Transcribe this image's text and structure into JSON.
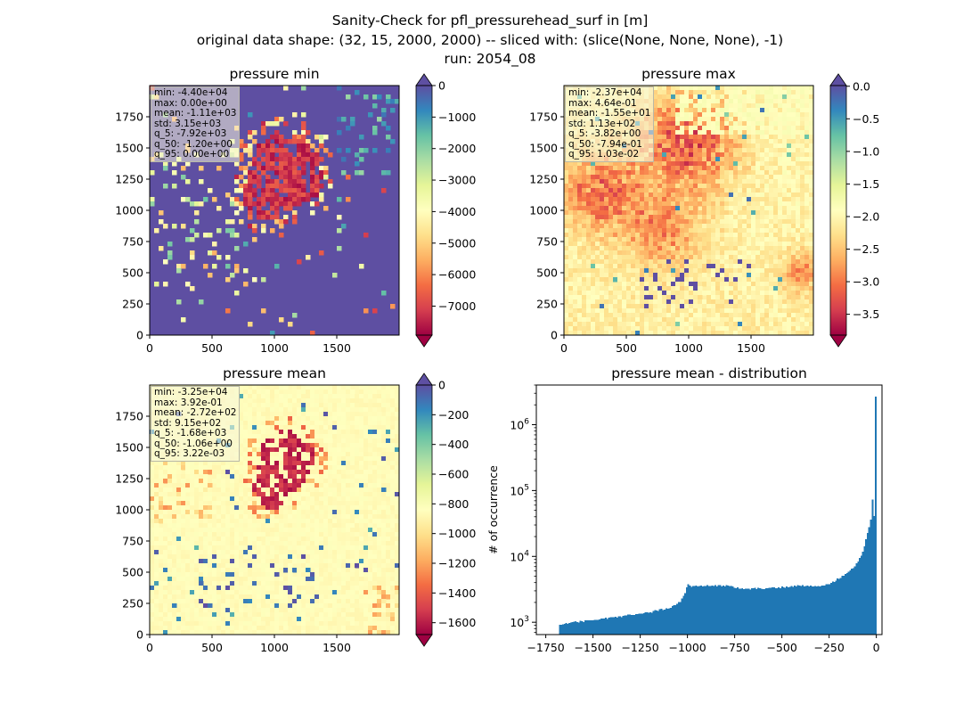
{
  "figure": {
    "title_lines": [
      "Sanity-Check for pfl_pressurehead_surf in [m]",
      "original data shape: (32, 15, 2000, 2000) -- sliced with: (slice(None, None, None), -1)",
      "run: 2054_08"
    ]
  },
  "chart_data": [
    {
      "type": "heatmap",
      "title": "pressure min",
      "xlabel": "",
      "ylabel": "",
      "xlim": [
        0,
        2000
      ],
      "ylim": [
        0,
        2000
      ],
      "xticks": [
        0,
        500,
        1000,
        1500
      ],
      "yticks": [
        0,
        250,
        500,
        750,
        1000,
        1250,
        1500,
        1750
      ],
      "colormap": "Spectral",
      "colorbar": {
        "vmin": -7920,
        "vmax": 0,
        "extend": "both",
        "ticks": [
          0,
          -1000,
          -2000,
          -3000,
          -4000,
          -5000,
          -6000,
          -7000
        ],
        "tick_labels": [
          "0",
          "−1000",
          "−2000",
          "−3000",
          "−4000",
          "−5000",
          "−6000",
          "−7000"
        ]
      },
      "stats": [
        "min: -4.40e+04",
        "max: 0.00e+00",
        "mean: -1.11e+03",
        "std: 3.15e+03",
        "q_5: -7.92e+03",
        "q_50: -1.20e+00",
        "q_95: 0.00e+00"
      ]
    },
    {
      "type": "heatmap",
      "title": "pressure max",
      "xlabel": "",
      "ylabel": "",
      "xlim": [
        0,
        2000
      ],
      "ylim": [
        0,
        2000
      ],
      "xticks": [
        0,
        500,
        1000,
        1500
      ],
      "yticks": [
        0,
        250,
        500,
        750,
        1000,
        1250,
        1500,
        1750
      ],
      "colormap": "Spectral",
      "colorbar": {
        "vmin": -3.82,
        "vmax": 0.0103,
        "extend": "both",
        "ticks": [
          0.0,
          -0.5,
          -1.0,
          -1.5,
          -2.0,
          -2.5,
          -3.0,
          -3.5
        ],
        "tick_labels": [
          "0.0",
          "−0.5",
          "−1.0",
          "−1.5",
          "−2.0",
          "−2.5",
          "−3.0",
          "−3.5"
        ]
      },
      "stats": [
        "min: -2.37e+04",
        "max: 4.64e-01",
        "mean: -1.55e+01",
        "std: 1.13e+02",
        "q_5: -3.82e+00",
        "q_50: -7.94e-01",
        "q_95: 1.03e-02"
      ]
    },
    {
      "type": "heatmap",
      "title": "pressure mean",
      "xlabel": "",
      "ylabel": "",
      "xlim": [
        0,
        2000
      ],
      "ylim": [
        0,
        2000
      ],
      "xticks": [
        0,
        500,
        1000,
        1500
      ],
      "yticks": [
        0,
        250,
        500,
        750,
        1000,
        1250,
        1500,
        1750
      ],
      "colormap": "Spectral",
      "colorbar": {
        "vmin": -1680,
        "vmax": 0.00322,
        "extend": "both",
        "ticks": [
          0,
          -200,
          -400,
          -600,
          -800,
          -1000,
          -1200,
          -1400,
          -1600
        ],
        "tick_labels": [
          "0",
          "−200",
          "−400",
          "−600",
          "−800",
          "−1000",
          "−1200",
          "−1400",
          "−1600"
        ]
      },
      "stats": [
        "min: -3.25e+04",
        "max: 3.92e-01",
        "mean: -2.72e+02",
        "std: 9.15e+02",
        "q_5: -1.68e+03",
        "q_50: -1.06e+00",
        "q_95: 3.22e-03"
      ]
    },
    {
      "type": "bar",
      "title": "pressure mean - distribution",
      "xlabel": "",
      "ylabel": "# of occurrence",
      "xlim": [
        -1800,
        30
      ],
      "yscale": "log",
      "ylim": [
        650,
        4000000
      ],
      "xticks": [
        -1750,
        -1500,
        -1250,
        -1000,
        -750,
        -500,
        -250,
        0
      ],
      "xtick_labels": [
        "−1750",
        "−1500",
        "−1250",
        "−1000",
        "−750",
        "−500",
        "−250",
        "0"
      ],
      "yticks": [
        1000,
        10000,
        100000,
        1000000
      ],
      "ytick_labels": [
        "10^3",
        "10^4",
        "10^5",
        "10^6"
      ],
      "bar_color": "#1f77b4",
      "bins": {
        "start": -1680,
        "end": 0,
        "count": 200
      },
      "profile": [
        [
          -1680,
          900
        ],
        [
          -1600,
          1000
        ],
        [
          -1500,
          1080
        ],
        [
          -1400,
          1170
        ],
        [
          -1300,
          1300
        ],
        [
          -1200,
          1420
        ],
        [
          -1100,
          1650
        ],
        [
          -1040,
          2000
        ],
        [
          -1015,
          2700
        ],
        [
          -1000,
          3700
        ],
        [
          -970,
          3500
        ],
        [
          -900,
          3600
        ],
        [
          -800,
          3600
        ],
        [
          -700,
          3200
        ],
        [
          -600,
          3250
        ],
        [
          -500,
          3400
        ],
        [
          -400,
          3600
        ],
        [
          -300,
          3500
        ],
        [
          -250,
          3800
        ],
        [
          -200,
          4600
        ],
        [
          -150,
          5600
        ],
        [
          -100,
          8000
        ],
        [
          -70,
          12000
        ],
        [
          -50,
          20000
        ],
        [
          -35,
          30000
        ],
        [
          -25,
          42000
        ],
        [
          -20,
          82000
        ],
        [
          -12,
          38000
        ],
        [
          -6,
          44000
        ],
        [
          0,
          2700000
        ]
      ]
    }
  ]
}
